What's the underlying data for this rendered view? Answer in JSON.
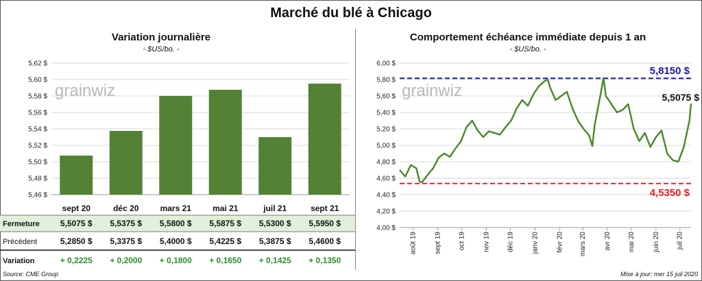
{
  "header": {
    "title": "Marché du blé à Chicago"
  },
  "left_chart": {
    "title": "Variation journalière",
    "unit": "- $US/bo. -",
    "watermark": "grainwiz"
  },
  "right_chart": {
    "title": "Comportement  échéance immédiate depuis 1 an",
    "unit": "- $US/bo. -",
    "watermark": "grainwiz",
    "max_label": "5,8150 $",
    "min_label": "4,5350 $",
    "last_label": "5,5075 $",
    "colors": {
      "line": "#4e8a2f",
      "max": "#1a1aa6",
      "min": "#e02020"
    }
  },
  "table": {
    "rows": [
      {
        "label": "Fermeture",
        "values": [
          "5,5075  $",
          "5,5375  $",
          "5,5800  $",
          "5,5875  $",
          "5,5300  $",
          "5,5950  $"
        ]
      },
      {
        "label": "Précédent",
        "values": [
          "5,2850  $",
          "5,3375  $",
          "5,4000  $",
          "5,4225  $",
          "5,3875  $",
          "5,4600  $"
        ]
      },
      {
        "label": "Variation",
        "values": [
          "+ 0,2225",
          "+ 0,2000",
          "+ 0,1800",
          "+ 0,1650",
          "+ 0,1425",
          "+ 0,1350"
        ]
      }
    ],
    "colors": {
      "highlight": "#e2efda",
      "variation": "#2e8b2e"
    }
  },
  "footer": {
    "source": "Source: CME Group",
    "updated": "Mise à jour: mer 15 juil 2020"
  },
  "chart_data": [
    {
      "type": "bar",
      "title": "Variation journalière",
      "categories": [
        "sept 20",
        "déc 20",
        "mars 21",
        "mai 21",
        "juil 21",
        "sept 21"
      ],
      "values": [
        5.5075,
        5.5375,
        5.58,
        5.5875,
        5.53,
        5.595
      ],
      "ylim": [
        5.46,
        5.62
      ],
      "yticks": [
        "5,46 $",
        "5,48 $",
        "5,50 $",
        "5,52 $",
        "5,54 $",
        "5,56 $",
        "5,58 $",
        "5,60 $",
        "5,62 $"
      ],
      "grid": "horizontal",
      "color": "#548235"
    },
    {
      "type": "line",
      "title": "Comportement  échéance immédiate depuis 1 an",
      "ylim": [
        4.0,
        6.0
      ],
      "yticks": [
        "4,00 $",
        "4,20 $",
        "4,40 $",
        "4,60 $",
        "4,80 $",
        "5,00 $",
        "5,20 $",
        "5,40 $",
        "5,60 $",
        "5,80 $",
        "6,00 $"
      ],
      "xticks": [
        "août 19",
        "sept 19",
        "oct 19",
        "nov 19",
        "déc 19",
        "janv 20",
        "févr 20",
        "mars 20",
        "avr 20",
        "mai 20",
        "juin 20",
        "juil 20"
      ],
      "x": [
        "2019-07-15",
        "2019-07-22",
        "2019-07-29",
        "2019-08-05",
        "2019-08-09",
        "2019-08-12",
        "2019-08-19",
        "2019-08-26",
        "2019-09-02",
        "2019-09-09",
        "2019-09-16",
        "2019-09-23",
        "2019-09-30",
        "2019-10-07",
        "2019-10-14",
        "2019-10-21",
        "2019-10-28",
        "2019-11-04",
        "2019-11-11",
        "2019-11-18",
        "2019-11-25",
        "2019-12-02",
        "2019-12-09",
        "2019-12-16",
        "2019-12-23",
        "2019-12-30",
        "2020-01-06",
        "2020-01-13",
        "2020-01-17",
        "2020-01-20",
        "2020-01-27",
        "2020-02-03",
        "2020-02-10",
        "2020-02-17",
        "2020-02-24",
        "2020-03-02",
        "2020-03-09",
        "2020-03-13",
        "2020-03-16",
        "2020-03-23",
        "2020-03-27",
        "2020-03-30",
        "2020-04-06",
        "2020-04-13",
        "2020-04-20",
        "2020-04-27",
        "2020-05-04",
        "2020-05-11",
        "2020-05-18",
        "2020-05-25",
        "2020-06-01",
        "2020-06-08",
        "2020-06-15",
        "2020-06-22",
        "2020-06-29",
        "2020-07-06",
        "2020-07-13",
        "2020-07-15"
      ],
      "series": [
        {
          "values": [
            4.7,
            4.62,
            4.76,
            4.72,
            4.56,
            4.55,
            4.64,
            4.72,
            4.85,
            4.9,
            4.86,
            4.96,
            5.05,
            5.22,
            5.3,
            5.18,
            5.1,
            5.17,
            5.15,
            5.13,
            5.22,
            5.3,
            5.45,
            5.55,
            5.48,
            5.62,
            5.72,
            5.78,
            5.8,
            5.7,
            5.55,
            5.6,
            5.65,
            5.45,
            5.3,
            5.2,
            5.12,
            4.99,
            5.25,
            5.6,
            5.82,
            5.6,
            5.5,
            5.4,
            5.43,
            5.5,
            5.2,
            5.05,
            5.15,
            4.98,
            5.1,
            5.18,
            4.9,
            4.82,
            4.8,
            4.98,
            5.3,
            5.5075
          ]
        }
      ],
      "reference_lines": [
        {
          "label": "5,8150 $",
          "value": 5.815
        },
        {
          "label": "4,5350 $",
          "value": 4.535
        }
      ],
      "grid": "horizontal"
    }
  ]
}
